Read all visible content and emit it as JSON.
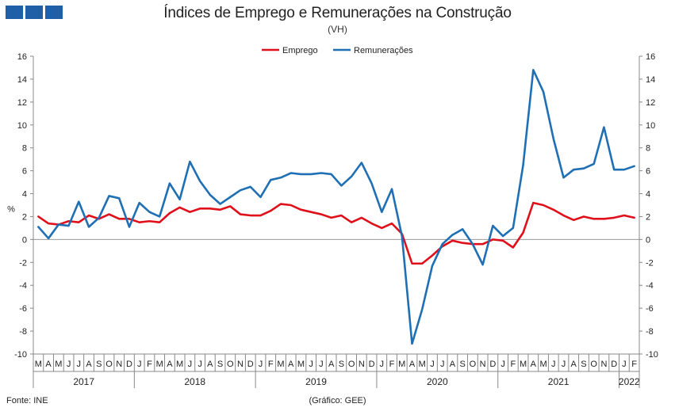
{
  "header": {
    "title": "Índices de Emprego e Remunerações na Construção",
    "subtitle": "(VH)"
  },
  "footer": {
    "source": "Fonte: INE",
    "credit": "(Gráfico: GEE)"
  },
  "chart_data": {
    "type": "line",
    "ylabel": "%",
    "ylim": [
      -10,
      16
    ],
    "yticks": [
      -10,
      -8,
      -6,
      -4,
      -2,
      0,
      2,
      4,
      6,
      8,
      10,
      12,
      14,
      16
    ],
    "y_axis_right": true,
    "grid": false,
    "legend_position": "top-center",
    "months": [
      "M",
      "A",
      "M",
      "J",
      "J",
      "A",
      "S",
      "O",
      "N",
      "D",
      "J",
      "F",
      "M",
      "A",
      "M",
      "J",
      "J",
      "A",
      "S",
      "O",
      "N",
      "D",
      "J",
      "F",
      "M",
      "A",
      "M",
      "J",
      "J",
      "A",
      "S",
      "O",
      "N",
      "D",
      "J",
      "F",
      "M",
      "A",
      "M",
      "J",
      "J",
      "A",
      "S",
      "O",
      "N",
      "D",
      "J",
      "F",
      "M",
      "A",
      "M",
      "J",
      "J",
      "A",
      "S",
      "O",
      "N",
      "D",
      "J",
      "F"
    ],
    "years": [
      {
        "label": "2017",
        "start": 0,
        "end": 9
      },
      {
        "label": "2018",
        "start": 10,
        "end": 21
      },
      {
        "label": "2019",
        "start": 22,
        "end": 33
      },
      {
        "label": "2020",
        "start": 34,
        "end": 45
      },
      {
        "label": "2021",
        "start": 46,
        "end": 57
      },
      {
        "label": "2022",
        "start": 58,
        "end": 59
      }
    ],
    "series": [
      {
        "name": "Emprego",
        "color": "#e0101a",
        "values": [
          2.0,
          1.4,
          1.3,
          1.6,
          1.5,
          2.1,
          1.8,
          2.2,
          1.8,
          1.8,
          1.5,
          1.6,
          1.5,
          2.3,
          2.8,
          2.4,
          2.7,
          2.7,
          2.6,
          2.9,
          2.2,
          2.1,
          2.1,
          2.5,
          3.1,
          3.0,
          2.6,
          2.4,
          2.2,
          1.9,
          2.1,
          1.5,
          1.9,
          1.4,
          1.0,
          1.4,
          0.5,
          -2.1,
          -2.1,
          -1.4,
          -0.6,
          -0.1,
          -0.3,
          -0.4,
          -0.4,
          0.0,
          -0.1,
          -0.7,
          0.6,
          3.2,
          3.0,
          2.6,
          2.1,
          1.7,
          2.0,
          1.8,
          1.8,
          1.9,
          2.1,
          1.9
        ]
      },
      {
        "name": "Remunerações",
        "color": "#1f6fb5",
        "values": [
          1.1,
          0.1,
          1.3,
          1.2,
          3.3,
          1.1,
          1.9,
          3.8,
          3.6,
          1.1,
          3.2,
          2.4,
          2.0,
          4.9,
          3.5,
          6.8,
          5.1,
          3.9,
          3.1,
          3.7,
          4.3,
          4.6,
          3.7,
          5.2,
          5.4,
          5.8,
          5.7,
          5.7,
          5.8,
          5.7,
          4.7,
          5.5,
          6.7,
          4.9,
          2.4,
          4.4,
          0.3,
          -9.1,
          -6.1,
          -2.3,
          -0.4,
          0.4,
          0.9,
          -0.4,
          -2.2,
          1.2,
          0.3,
          1.0,
          6.5,
          14.8,
          12.9,
          8.8,
          5.4,
          6.1,
          6.2,
          6.6,
          9.8,
          6.1,
          6.1,
          6.4
        ]
      }
    ]
  }
}
